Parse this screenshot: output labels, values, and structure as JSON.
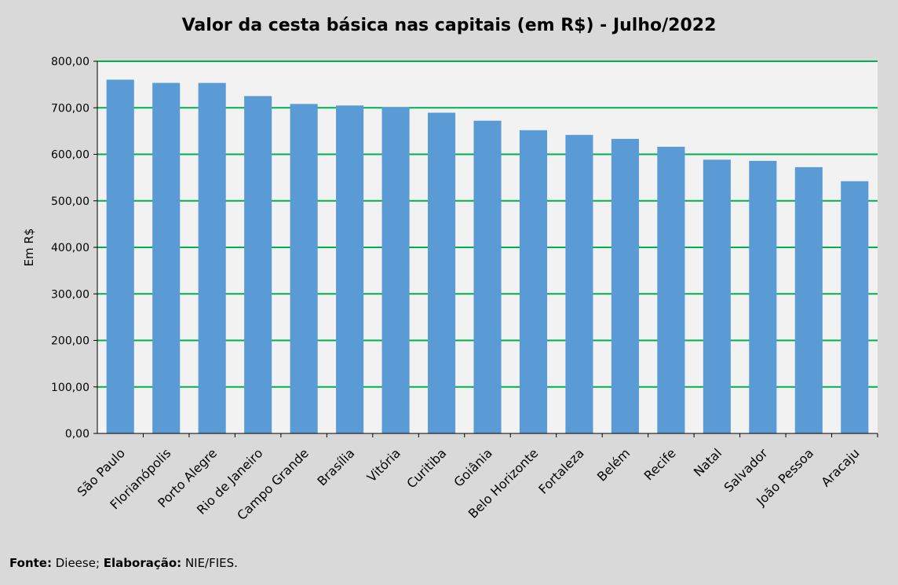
{
  "chart_data": {
    "type": "bar",
    "title": "Valor da cesta básica nas capitais (em R$) - Julho/2022",
    "xlabel": "",
    "ylabel": "Em R$",
    "ylim": [
      0,
      800
    ],
    "y_ticks": [
      "0,00",
      "100,00",
      "200,00",
      "300,00",
      "400,00",
      "500,00",
      "600,00",
      "700,00",
      "800,00"
    ],
    "grid": true,
    "categories": [
      "São Paulo",
      "Florianópolis",
      "Porto Alegre",
      "Rio de Janeiro",
      "Campo Grande",
      "Brasília",
      "Vitória",
      "Curitiba",
      "Goiânia",
      "Belo Horizonte",
      "Fortaleza",
      "Belém",
      "Recife",
      "Natal",
      "Salvador",
      "João Pessoa",
      "Aracaju"
    ],
    "values": [
      760.45,
      753.5,
      753.38,
      725.13,
      708.17,
      704.87,
      701.49,
      689.4,
      672.21,
      651.75,
      641.71,
      633.15,
      616.19,
      588.42,
      585.88,
      572.36,
      542.16
    ],
    "colors": {
      "bar": "#5b9bd5",
      "grid": "#00b050",
      "plot_bg": "#f2f2f2",
      "page_bg": "#d9d9d9"
    }
  },
  "footer": {
    "source_label": "Fonte:",
    "source_value": " Dieese; ",
    "elab_label": "Elaboração:",
    "elab_value": " NIE/FIES."
  }
}
